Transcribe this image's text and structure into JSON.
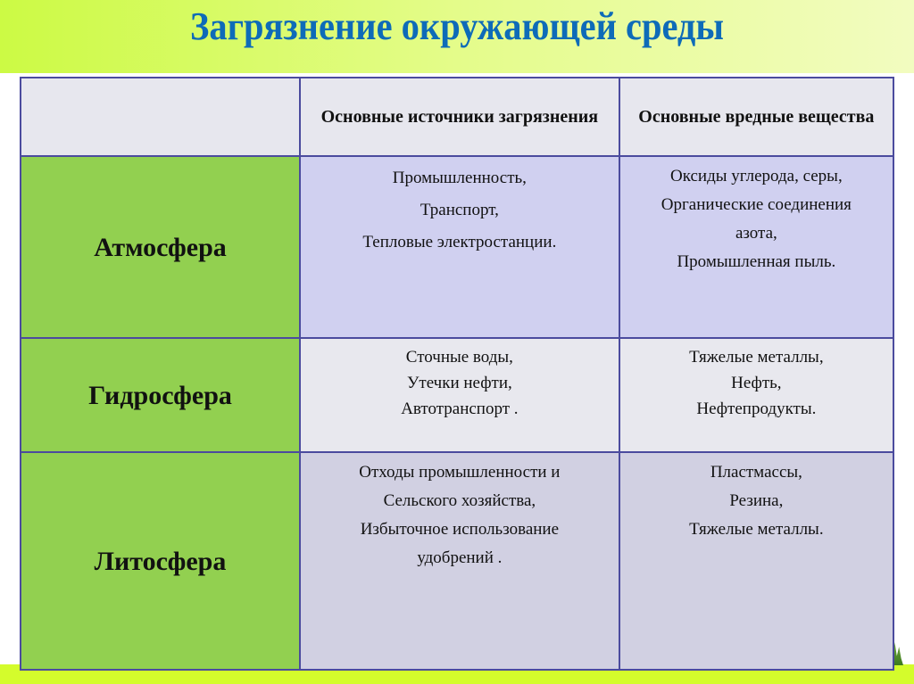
{
  "title": "Загрязнение окружающей среды",
  "table": {
    "headers": [
      "",
      "Основные источники загрязнения",
      "Основные вредные вещества"
    ],
    "rows": [
      {
        "sphere": "Атмосфера",
        "sources": [
          "Промышленность,",
          "Транспорт,",
          "Тепловые электростанции."
        ],
        "substances": [
          "Оксиды углерода, серы,",
          "Органические соединения",
          "азота,",
          "Промышленная пыль."
        ]
      },
      {
        "sphere": "Гидросфера",
        "sources": [
          "Сточные воды,",
          "Утечки нефти,",
          "Автотранспорт ."
        ],
        "substances": [
          "Тяжелые металлы,",
          "Нефть,",
          "Нефтепродукты."
        ]
      },
      {
        "sphere": "Литосфера",
        "sources": [
          "Отходы промышленности и",
          "Сельского хозяйства,",
          "Избыточное использование",
          "удобрений ."
        ],
        "substances": [
          "Пластмассы,",
          "Резина,",
          "Тяжелые металлы."
        ]
      }
    ]
  },
  "colors": {
    "title": "#0e6bb8",
    "sphere_cell": "#92d050",
    "border": "#4b4b9e"
  }
}
